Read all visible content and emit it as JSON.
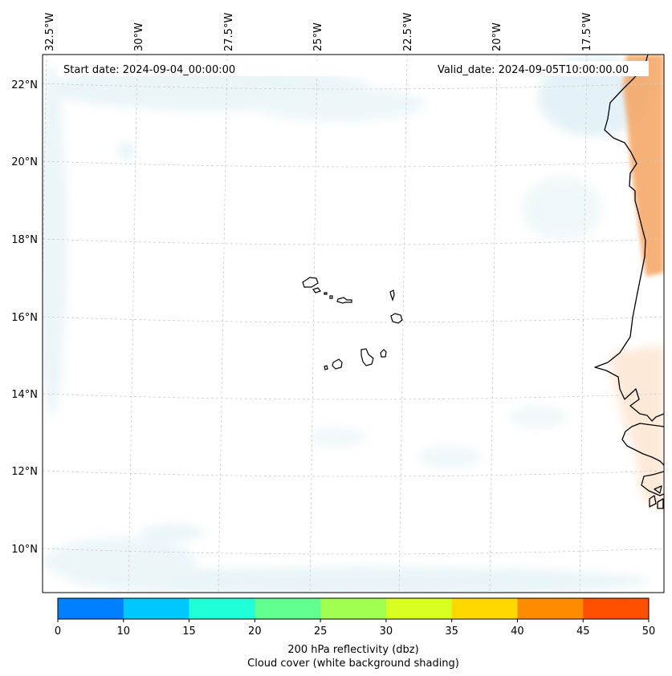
{
  "header": {
    "start_date": "Start date: 2024-09-04_00:00:00",
    "valid_date": "Valid_date: 2024-09-05T10:00:00.00"
  },
  "map": {
    "lon_labels": [
      "32.5°W",
      "30°W",
      "27.5°W",
      "25°W",
      "22.5°W",
      "20°W",
      "17.5°W"
    ],
    "lat_labels": [
      "22°N",
      "20°N",
      "18°N",
      "16°N",
      "14°N",
      "12°N",
      "10°N"
    ],
    "gridlines": "dashed light grey",
    "land_colors": {
      "desert": "#f4a460",
      "light_orange": "#fde0c8"
    },
    "cloud_color": "#cfe8ef"
  },
  "colorbar": {
    "ticks": [
      "0",
      "10",
      "15",
      "20",
      "25",
      "30",
      "35",
      "40",
      "45",
      "50"
    ],
    "colors": [
      "#0080ff",
      "#00c8ff",
      "#20ffd8",
      "#60ff90",
      "#a0ff50",
      "#d8ff20",
      "#ffd800",
      "#ff8c00",
      "#ff5000"
    ],
    "label_line1": "200 hPa reflectivity (dbz)",
    "label_line2": "Cloud cover (white background shading)"
  }
}
